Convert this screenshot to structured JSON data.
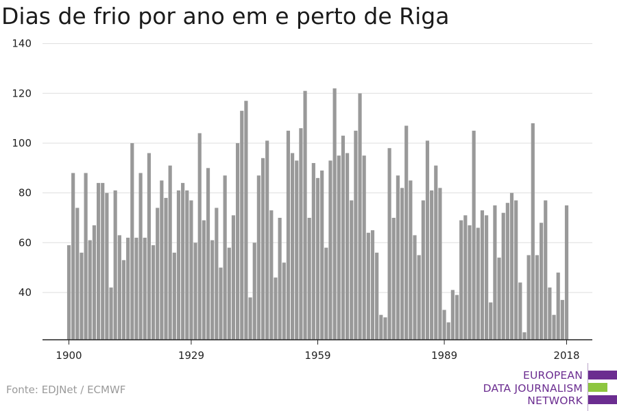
{
  "title": "Dias de frio por ano em e perto de Riga",
  "source": "Fonte: EDJNet / ECMWF",
  "logo": {
    "lines": [
      "EUROPEAN",
      "DATA JOURNALISM",
      "NETWORK"
    ],
    "text_color": "#6b2d90",
    "bar_colors": [
      "#6b2d90",
      "#8dc63f",
      "#6b2d90"
    ]
  },
  "chart_data": {
    "type": "bar",
    "title": "Dias de frio por ano em e perto de Riga",
    "xlabel": "",
    "ylabel": "",
    "x_start": 1900,
    "x_end": 2018,
    "x_tick_labels": [
      "1900",
      "1929",
      "1959",
      "1989",
      "2018"
    ],
    "y_ticks": [
      40,
      60,
      80,
      100,
      120,
      140
    ],
    "ylim": [
      21,
      141
    ],
    "grid": true,
    "bar_color": "#999999",
    "values": [
      59,
      88,
      74,
      56,
      88,
      61,
      67,
      84,
      84,
      80,
      42,
      81,
      63,
      53,
      62,
      100,
      62,
      88,
      62,
      96,
      59,
      74,
      85,
      78,
      91,
      56,
      81,
      84,
      81,
      77,
      60,
      104,
      69,
      90,
      61,
      74,
      50,
      87,
      58,
      71,
      100,
      113,
      117,
      38,
      60,
      87,
      94,
      101,
      73,
      46,
      70,
      52,
      105,
      96,
      93,
      106,
      121,
      70,
      92,
      86,
      89,
      58,
      93,
      122,
      95,
      103,
      96,
      77,
      105,
      120,
      95,
      64,
      65,
      56,
      31,
      30,
      98,
      70,
      87,
      82,
      107,
      85,
      63,
      55,
      77,
      101,
      81,
      91,
      82,
      33,
      28,
      41,
      39,
      69,
      71,
      67,
      105,
      66,
      73,
      71,
      36,
      75,
      54,
      72,
      76,
      80,
      77,
      44,
      24,
      55,
      108,
      55,
      68,
      77,
      42,
      31,
      48,
      37,
      75
    ]
  }
}
